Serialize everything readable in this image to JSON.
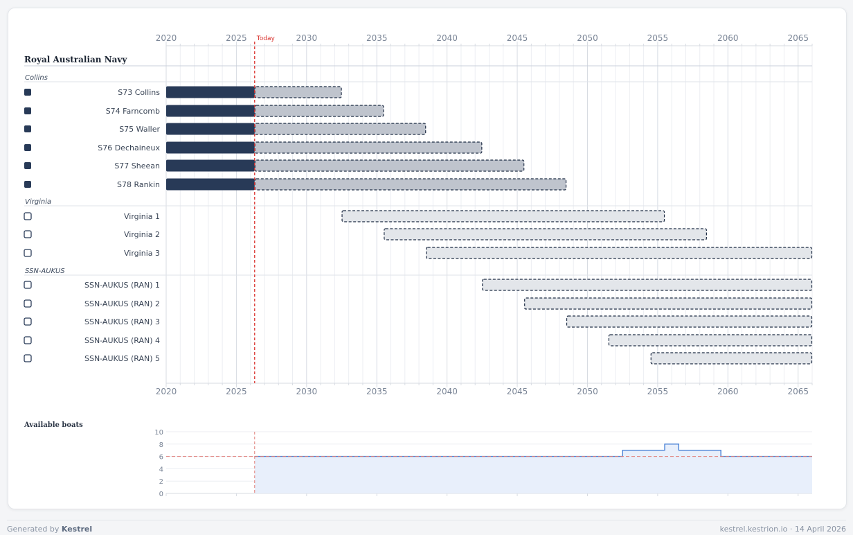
{
  "footer": {
    "generated_prefix": "Generated by",
    "brand": "Kestrel",
    "site": "kestrel.kestrion.io",
    "separator": "·",
    "date": "14 April 2026"
  },
  "colors": {
    "active_bar": "#283a57",
    "planned_collins": "#bfc4cd",
    "planned_future": "#e3e6ea",
    "today_line": "#d9302c",
    "avail_line": "#4a82d6",
    "avail_fill": "#e8effb",
    "grid_major": "#d7dbe2",
    "grid_minor": "#eceef2",
    "axis_text": "#7a8596"
  },
  "chart_data": [
    {
      "type": "gantt",
      "title": "Royal Australian Navy",
      "today_label": "Today",
      "today": 2026.3,
      "xlim": [
        2020,
        2066
      ],
      "xticks": [
        "2020",
        "2025",
        "2030",
        "2035",
        "2040",
        "2045",
        "2050",
        "2055",
        "2060",
        "2065"
      ],
      "groups": [
        {
          "name": "Collins",
          "rows": [
            {
              "label": "S73 Collins",
              "checked": true,
              "active": [
                2020,
                2026.3
              ],
              "planned": [
                2026.3,
                2032.5
              ]
            },
            {
              "label": "S74 Farncomb",
              "checked": true,
              "active": [
                2020,
                2026.3
              ],
              "planned": [
                2026.3,
                2035.5
              ]
            },
            {
              "label": "S75 Waller",
              "checked": true,
              "active": [
                2020,
                2026.3
              ],
              "planned": [
                2026.3,
                2038.5
              ]
            },
            {
              "label": "S76 Dechaineux",
              "checked": true,
              "active": [
                2020,
                2026.3
              ],
              "planned": [
                2026.3,
                2042.5
              ]
            },
            {
              "label": "S77 Sheean",
              "checked": true,
              "active": [
                2020,
                2026.3
              ],
              "planned": [
                2026.3,
                2045.5
              ]
            },
            {
              "label": "S78 Rankin",
              "checked": true,
              "active": [
                2020,
                2026.3
              ],
              "planned": [
                2026.3,
                2048.5
              ]
            }
          ]
        },
        {
          "name": "Virginia",
          "rows": [
            {
              "label": "Virginia 1",
              "checked": false,
              "planned": [
                2032.5,
                2055.5
              ]
            },
            {
              "label": "Virginia 2",
              "checked": false,
              "planned": [
                2035.5,
                2058.5
              ]
            },
            {
              "label": "Virginia 3",
              "checked": false,
              "planned": [
                2038.5,
                2066
              ]
            }
          ]
        },
        {
          "name": "SSN-AUKUS",
          "rows": [
            {
              "label": "SSN-AUKUS (RAN) 1",
              "checked": false,
              "planned": [
                2042.5,
                2066
              ]
            },
            {
              "label": "SSN-AUKUS (RAN) 2",
              "checked": false,
              "planned": [
                2045.5,
                2066
              ]
            },
            {
              "label": "SSN-AUKUS (RAN) 3",
              "checked": false,
              "planned": [
                2048.5,
                2066
              ]
            },
            {
              "label": "SSN-AUKUS (RAN) 4",
              "checked": false,
              "planned": [
                2051.5,
                2066
              ]
            },
            {
              "label": "SSN-AUKUS (RAN) 5",
              "checked": false,
              "planned": [
                2054.5,
                2066
              ]
            }
          ]
        }
      ]
    },
    {
      "type": "area",
      "title": "Available boats",
      "xlim": [
        2020,
        2066
      ],
      "ylim": [
        0,
        10
      ],
      "yticks": [
        "0",
        "2",
        "4",
        "6",
        "8",
        "10"
      ],
      "threshold": 6,
      "today": 2026.3,
      "steps": [
        {
          "x": 2026.5,
          "y": 6
        },
        {
          "x": 2052.5,
          "y": 7
        },
        {
          "x": 2055.5,
          "y": 8
        },
        {
          "x": 2056.5,
          "y": 7
        },
        {
          "x": 2059.5,
          "y": 6
        },
        {
          "x": 2066,
          "y": 6
        }
      ]
    }
  ]
}
